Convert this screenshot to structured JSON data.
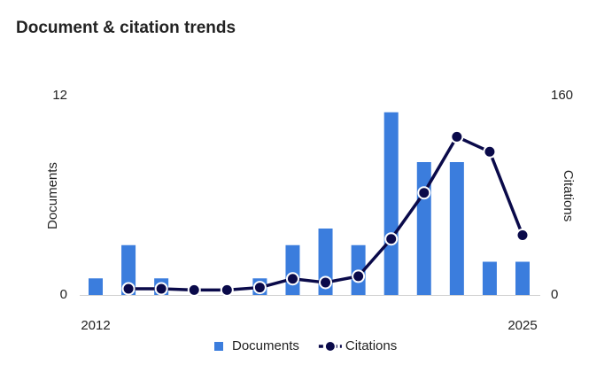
{
  "chart_data": {
    "type": "bar-line",
    "title": "Document & citation trends",
    "categories": [
      "2012",
      null,
      null,
      null,
      null,
      null,
      null,
      null,
      null,
      null,
      null,
      null,
      null,
      "2025"
    ],
    "ylabel": "Documents",
    "y2label": "Citations",
    "ylim": [
      0,
      12
    ],
    "yticks": [
      0,
      12
    ],
    "y2lim": [
      0,
      160
    ],
    "y2ticks": [
      0,
      160
    ],
    "legend": "bottom",
    "series": [
      {
        "name": "Documents",
        "type": "bar",
        "color": "#3b7ddd",
        "values": [
          1,
          3,
          1,
          0,
          0,
          1,
          3,
          4,
          3,
          11,
          8,
          8,
          2,
          2
        ]
      },
      {
        "name": "Citations",
        "type": "line",
        "axis": "y2",
        "color": "#0a0a4a",
        "values": [
          null,
          5,
          5,
          4,
          4,
          6,
          13,
          10,
          15,
          45,
          82,
          127,
          115,
          48
        ]
      }
    ]
  }
}
